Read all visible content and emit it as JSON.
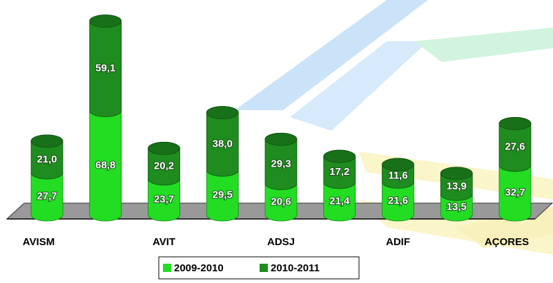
{
  "chart_data": {
    "type": "bar",
    "stacked": true,
    "categories": [
      "AVISM",
      null,
      "AVIT",
      null,
      "ADSJ",
      null,
      "ADIF",
      null,
      "AÇORES"
    ],
    "series": [
      {
        "name": "2009-2010",
        "color": "#22dd22",
        "values": [
          27.7,
          68.8,
          23.7,
          29.5,
          20.6,
          21.4,
          21.6,
          13.5,
          32.7
        ],
        "value_labels": [
          "27,7",
          "68,8",
          "23,7",
          "29,5",
          "20,6",
          "21,4",
          "21,6",
          "13,5",
          "32,7"
        ]
      },
      {
        "name": "2010-2011",
        "color": "#1e8c1e",
        "values": [
          21.0,
          59.1,
          20.2,
          38.0,
          29.3,
          17.2,
          11.6,
          13.9,
          27.6
        ],
        "value_labels": [
          "21,0",
          "59,1",
          "20,2",
          "38,0",
          "29,3",
          "17,2",
          "11,6",
          "13,9",
          "27,6"
        ]
      }
    ],
    "legend": "bottom"
  }
}
